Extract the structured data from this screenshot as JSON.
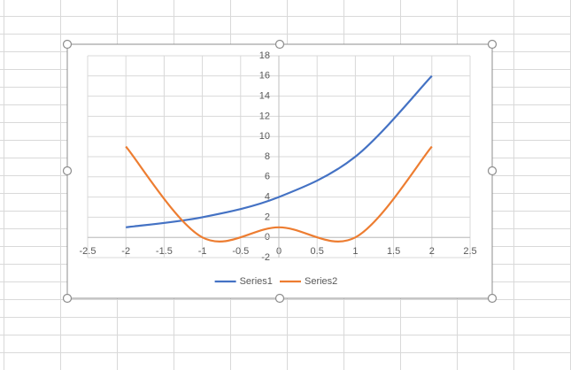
{
  "chart_data": {
    "type": "line",
    "smooth": true,
    "x": [
      -2,
      -1,
      0,
      1,
      2
    ],
    "series": [
      {
        "name": "Series1",
        "color": "#4472c4",
        "values": [
          1,
          2,
          4,
          8,
          16
        ]
      },
      {
        "name": "Series2",
        "color": "#ed7d31",
        "values": [
          9,
          0,
          1,
          0,
          9
        ]
      }
    ],
    "xlim": [
      -2.5,
      2.5
    ],
    "xticks": [
      -2.5,
      -2,
      -1.5,
      -1,
      -0.5,
      0,
      0.5,
      1,
      1.5,
      2,
      2.5
    ],
    "ylim": [
      -2,
      18
    ],
    "yticks": [
      -2,
      0,
      2,
      4,
      6,
      8,
      10,
      12,
      14,
      16,
      18
    ],
    "grid": true,
    "legend": "bottom"
  }
}
